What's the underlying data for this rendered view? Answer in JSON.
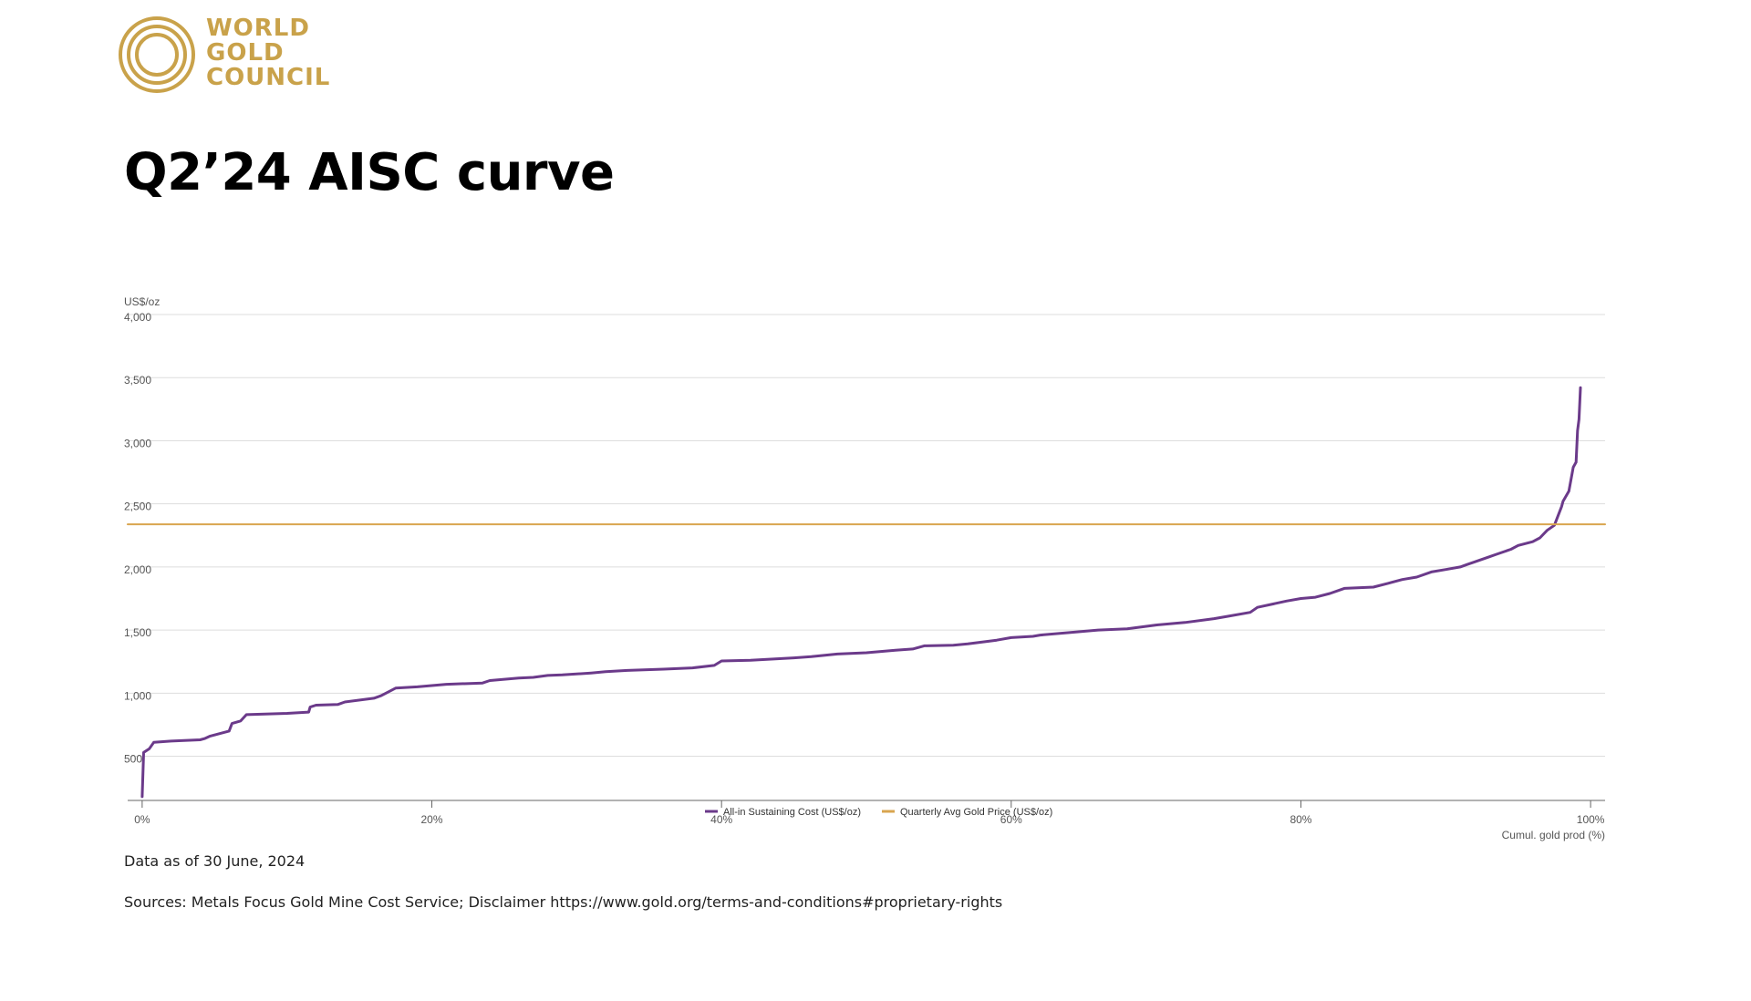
{
  "logo": {
    "lines": [
      "WORLD",
      "GOLD",
      "COUNCIL"
    ],
    "color": "#c9a24a"
  },
  "title": "Q2’24 AISC curve",
  "notes": {
    "date": "Data as of 30 June, 2024",
    "sources": "Sources: Metals Focus Gold Mine Cost Service; Disclaimer https://www.gold.org/terms-and-conditions#proprietary-rights"
  },
  "chart_data": {
    "type": "line",
    "ylabel": "US$/oz",
    "xlabel": "Cumul. gold prod (%)",
    "ylim": [
      150,
      4000
    ],
    "xlim": [
      -0.01,
      1.01
    ],
    "yticks": [
      500,
      1000,
      1500,
      2000,
      2500,
      3000,
      3500,
      4000
    ],
    "ytick_labels": [
      "500",
      "1,000",
      "1,500",
      "2,000",
      "2,500",
      "3,000",
      "3,500",
      "4,000"
    ],
    "xticks": [
      0,
      0.2,
      0.4,
      0.6,
      0.8,
      1.0
    ],
    "xtick_labels": [
      "0%",
      "20%",
      "40%",
      "60%",
      "80%",
      "100%"
    ],
    "grid": true,
    "legend_position": "bottom-center",
    "series": [
      {
        "name": "All-in Sustaining Cost (US$/oz)",
        "color": "#6b3a8a",
        "x": [
          0,
          0.001,
          0.005,
          0.008,
          0.02,
          0.04,
          0.043,
          0.047,
          0.06,
          0.062,
          0.068,
          0.072,
          0.1,
          0.115,
          0.116,
          0.12,
          0.135,
          0.14,
          0.16,
          0.165,
          0.17,
          0.175,
          0.19,
          0.21,
          0.235,
          0.24,
          0.26,
          0.27,
          0.28,
          0.29,
          0.31,
          0.32,
          0.335,
          0.36,
          0.38,
          0.395,
          0.4,
          0.42,
          0.45,
          0.462,
          0.48,
          0.5,
          0.52,
          0.532,
          0.54,
          0.56,
          0.57,
          0.59,
          0.6,
          0.615,
          0.62,
          0.64,
          0.66,
          0.68,
          0.7,
          0.72,
          0.74,
          0.75,
          0.765,
          0.77,
          0.79,
          0.8,
          0.81,
          0.82,
          0.83,
          0.85,
          0.86,
          0.87,
          0.88,
          0.89,
          0.9,
          0.91,
          0.915,
          0.92,
          0.93,
          0.935,
          0.945,
          0.95,
          0.96,
          0.965,
          0.97,
          0.975,
          0.98,
          0.981,
          0.985,
          0.988,
          0.99,
          0.991,
          0.992,
          0.993
        ],
        "values": [
          180,
          530,
          560,
          610,
          620,
          630,
          640,
          660,
          700,
          760,
          780,
          830,
          840,
          850,
          890,
          905,
          910,
          930,
          960,
          980,
          1010,
          1040,
          1050,
          1070,
          1080,
          1100,
          1120,
          1125,
          1140,
          1145,
          1160,
          1170,
          1180,
          1190,
          1200,
          1220,
          1255,
          1260,
          1280,
          1290,
          1310,
          1320,
          1340,
          1350,
          1375,
          1380,
          1390,
          1420,
          1440,
          1450,
          1460,
          1480,
          1500,
          1510,
          1540,
          1560,
          1590,
          1610,
          1640,
          1680,
          1730,
          1750,
          1760,
          1790,
          1830,
          1840,
          1870,
          1900,
          1920,
          1960,
          1980,
          2000,
          2020,
          2040,
          2080,
          2100,
          2140,
          2170,
          2200,
          2230,
          2290,
          2330,
          2480,
          2520,
          2600,
          2790,
          2830,
          3080,
          3170,
          3420
        ]
      },
      {
        "name": "Quarterly Avg Gold Price (US$/oz)",
        "color": "#d9a54f",
        "x": [
          -0.01,
          1.01
        ],
        "values": [
          2338,
          2338
        ]
      }
    ]
  }
}
